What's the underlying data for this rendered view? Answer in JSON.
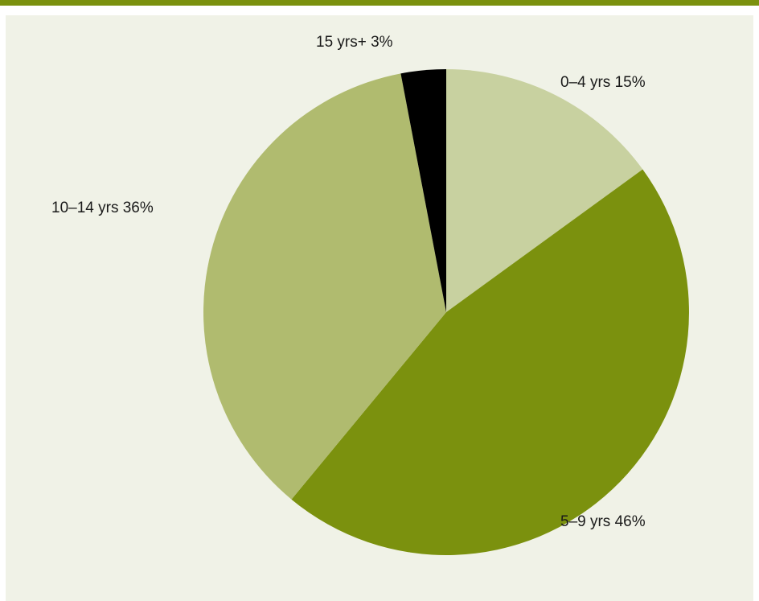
{
  "chart_data": {
    "type": "pie",
    "title": "",
    "slices": [
      {
        "label": "0–4 yrs  15%",
        "category": "0–4 yrs",
        "value": 15,
        "color": "#c8d1a0"
      },
      {
        "label": "5–9 yrs  46%",
        "category": "5–9 yrs",
        "value": 46,
        "color": "#7b910e"
      },
      {
        "label": "10–14 yrs  36%",
        "category": "10–14 yrs",
        "value": 36,
        "color": "#b0bb6f"
      },
      {
        "label": "15 yrs+  3%",
        "category": "15 yrs+",
        "value": 3,
        "color": "#000000"
      }
    ],
    "start_angle_deg": 0,
    "direction": "clockwise",
    "legend": "none"
  },
  "colors": {
    "header_band": "#7b910e",
    "panel_background": "#f0f2e7",
    "label_text": "#1a1a1a"
  }
}
